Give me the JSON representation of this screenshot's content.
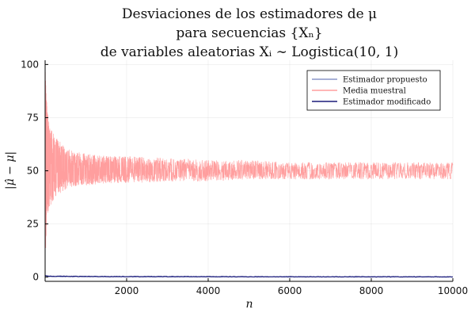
{
  "chart_data": {
    "type": "line",
    "title_lines": [
      "Desviaciones de los estimadores de μ",
      "para secuencias {Xₙ}",
      "de variables aleatorias Xᵢ ∼ Logistica(10, 1)"
    ],
    "xlabel": "n",
    "ylabel": "|μ̂ − μ|",
    "xlim": [
      1,
      10000
    ],
    "ylim": [
      -2,
      102
    ],
    "xticks": [
      2000,
      4000,
      6000,
      8000,
      10000
    ],
    "xtick_labels": [
      "2000",
      "4000",
      "6000",
      "8000",
      "10000"
    ],
    "yticks": [
      0,
      25,
      50,
      75,
      100
    ],
    "ytick_labels": [
      "0",
      "25",
      "50",
      "75",
      "100"
    ],
    "grid": true,
    "legend_position": "top-right",
    "series": [
      {
        "name": "Estimador propuesto",
        "color": "#8a96c8",
        "x": [
          1,
          50,
          200,
          1000,
          2000,
          4000,
          6000,
          8000,
          10000
        ],
        "y": [
          0.5,
          0.4,
          0.3,
          0.2,
          0.15,
          0.1,
          0.1,
          0.08,
          0.08
        ]
      },
      {
        "name": "Media muestral",
        "color": "#ff9e9e",
        "x": [
          1,
          10,
          30,
          60,
          100,
          200,
          300,
          400,
          600,
          800,
          1000,
          1500,
          2000,
          3000,
          4000,
          5000,
          6000,
          7000,
          8000,
          9000,
          10000
        ],
        "y_center": [
          60,
          58,
          55,
          52,
          51,
          50,
          50,
          50,
          50,
          50,
          50,
          50,
          50,
          50,
          50,
          50,
          50,
          50,
          50,
          50,
          50
        ],
        "y_lower": [
          0,
          5,
          22,
          28,
          32,
          35,
          38,
          40,
          42,
          43,
          43,
          44,
          44,
          45,
          45,
          46,
          46,
          46,
          46,
          46,
          46
        ],
        "y_upper": [
          100,
          98,
          85,
          78,
          72,
          68,
          65,
          63,
          60,
          59,
          58,
          57,
          57,
          56,
          55,
          55,
          54,
          54,
          54,
          54,
          54
        ]
      },
      {
        "name": "Estimador modificado",
        "color": "#1a1a7a",
        "x": [
          1,
          50,
          200,
          1000,
          2000,
          4000,
          6000,
          8000,
          10000
        ],
        "y": [
          0.8,
          0.5,
          0.4,
          0.3,
          0.25,
          0.2,
          0.15,
          0.15,
          0.12
        ]
      }
    ]
  }
}
